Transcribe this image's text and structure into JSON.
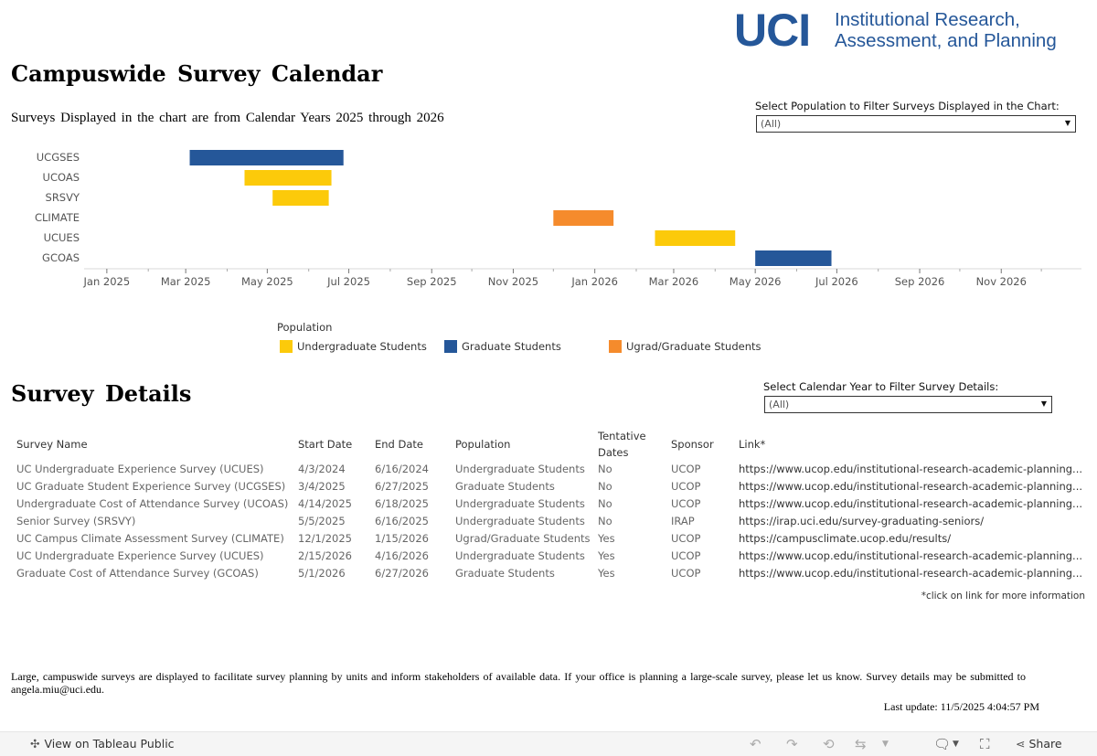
{
  "logo": {
    "mark": "UCI",
    "line1": "Institutional Research,",
    "line2": "Assessment, and Planning",
    "color": "#255799"
  },
  "header": {
    "title": "Campuswide Survey Calendar",
    "subtitle": "Surveys Displayed in the chart are from Calendar Years 2025 through 2026"
  },
  "population_filter": {
    "label": "Select Population to Filter Surveys Displayed in the Chart:",
    "value": "(All)"
  },
  "chart_data": {
    "type": "gantt",
    "y_categories": [
      "UCGSES",
      "UCOAS",
      "SRSVY",
      "CLIMATE",
      "UCUES",
      "GCOAS"
    ],
    "x_ticks": [
      "Jan 2025",
      "Mar 2025",
      "May 2025",
      "Jul 2025",
      "Sep 2025",
      "Nov 2025",
      "Jan 2026",
      "Mar 2026",
      "May 2026",
      "Jul 2026",
      "Sep 2026",
      "Nov 2026"
    ],
    "x_range": [
      "2024-12-15",
      "2026-12-31"
    ],
    "bars": [
      {
        "survey": "UCGSES",
        "start": "2025-03-04",
        "end": "2025-06-27",
        "population": "Graduate Students"
      },
      {
        "survey": "UCOAS",
        "start": "2025-04-14",
        "end": "2025-06-18",
        "population": "Undergraduate Students"
      },
      {
        "survey": "SRSVY",
        "start": "2025-05-05",
        "end": "2025-06-16",
        "population": "Undergraduate Students"
      },
      {
        "survey": "CLIMATE",
        "start": "2025-12-01",
        "end": "2026-01-15",
        "population": "Ugrad/Graduate Students"
      },
      {
        "survey": "UCUES",
        "start": "2026-02-15",
        "end": "2026-04-16",
        "population": "Undergraduate Students"
      },
      {
        "survey": "GCOAS",
        "start": "2026-05-01",
        "end": "2026-06-27",
        "population": "Graduate Students"
      }
    ],
    "legend": {
      "title": "Population",
      "items": [
        {
          "label": "Undergraduate Students",
          "color": "#FCCA0A"
        },
        {
          "label": "Graduate Students",
          "color": "#255799"
        },
        {
          "label": "Ugrad/Graduate Students",
          "color": "#F58B2C"
        }
      ]
    }
  },
  "details": {
    "title": "Survey Details",
    "year_filter": {
      "label": "Select Calendar Year to Filter Survey Details:",
      "value": "(All)"
    },
    "columns": [
      "Survey Name",
      "Start Date",
      "End Date",
      "Population",
      "Tentative\nDates",
      "Sponsor",
      "Link*"
    ],
    "rows": [
      [
        "UC Undergraduate Experience Survey (UCUES)",
        "4/3/2024",
        "6/16/2024",
        "Undergraduate Students",
        "No",
        "UCOP",
        "https://www.ucop.edu/institutional-research-academic-planning..."
      ],
      [
        "UC Graduate Student Experience Survey (UCGSES)",
        "3/4/2025",
        "6/27/2025",
        "Graduate Students",
        "No",
        "UCOP",
        "https://www.ucop.edu/institutional-research-academic-planning..."
      ],
      [
        "Undergraduate Cost of Attendance Survey (UCOAS)",
        "4/14/2025",
        "6/18/2025",
        "Undergraduate Students",
        "No",
        "UCOP",
        "https://www.ucop.edu/institutional-research-academic-planning..."
      ],
      [
        "Senior Survey (SRSVY)",
        "5/5/2025",
        "6/16/2025",
        "Undergraduate Students",
        "No",
        "IRAP",
        "https://irap.uci.edu/survey-graduating-seniors/"
      ],
      [
        "UC Campus Climate Assessment Survey (CLIMATE)",
        "12/1/2025",
        "1/15/2026",
        "Ugrad/Graduate Students",
        "Yes",
        "UCOP",
        "https://campusclimate.ucop.edu/results/"
      ],
      [
        "UC Undergraduate Experience Survey (UCUES)",
        "2/15/2026",
        "4/16/2026",
        "Undergraduate Students",
        "Yes",
        "UCOP",
        "https://www.ucop.edu/institutional-research-academic-planning..."
      ],
      [
        "Graduate Cost of Attendance Survey (GCOAS)",
        "5/1/2026",
        "6/27/2026",
        "Graduate Students",
        "Yes",
        "UCOP",
        "https://www.ucop.edu/institutional-research-academic-planning..."
      ]
    ],
    "note": "*click on link for more information"
  },
  "footer": {
    "text": "Large, campuswide surveys are displayed to facilitate survey planning by units and inform stakeholders of available data. If your office is planning a large-scale survey, please let us know. Survey details may be submitted to angela.miu@uci.edu.",
    "last_update": "Last update: 11/5/2025 4:04:57 PM"
  },
  "toolbar": {
    "view_label": "View on Tableau Public",
    "share_label": "Share"
  }
}
